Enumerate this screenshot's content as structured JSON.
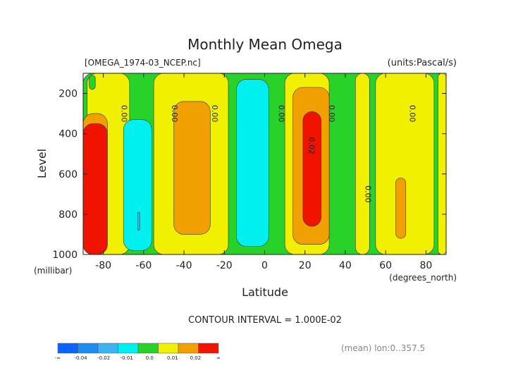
{
  "chart_data": {
    "type": "heatmap",
    "title": "Monthly Mean Omega",
    "file_label": "[OMEGA_1974-03_NCEP.nc]",
    "units_label": "(units:Pascal/s)",
    "xlabel": "Latitude",
    "x_units": "(degrees_north)",
    "ylabel": "Level",
    "y_units": "(millibar)",
    "xlim": [
      -90,
      90
    ],
    "ylim": [
      1000,
      100
    ],
    "x_ticks": [
      "-80",
      "-60",
      "-40",
      "-20",
      "0",
      "20",
      "40",
      "60",
      "80"
    ],
    "y_ticks": [
      "200",
      "400",
      "600",
      "800",
      "1000"
    ],
    "contour_interval": "CONTOUR INTERVAL = 1.000E-02",
    "mean_note": "(mean) lon:0..357.5",
    "contour_labels": [
      "0.00",
      "0.00",
      "0.00",
      "0.00",
      "0.00",
      "0.02",
      "0.00",
      "0.00"
    ],
    "colorbar": {
      "colors": [
        "#0a64ff",
        "#1e8cf0",
        "#3cb4f0",
        "#00f0f0",
        "#28d228",
        "#f0f000",
        "#f0a000",
        "#f01400"
      ],
      "tick_labels": [
        "-∞",
        "-0.04",
        "-0.02",
        "-0.01",
        "0.0",
        "0.01",
        "0.02",
        "∞"
      ]
    },
    "regions": [
      {
        "level": "green",
        "lat": [
          -90,
          90
        ],
        "p": [
          100,
          1000
        ]
      },
      {
        "level": "yellow",
        "lat": [
          -88,
          -67
        ],
        "p": [
          100,
          1000
        ]
      },
      {
        "level": "yellow",
        "lat": [
          -55,
          -18
        ],
        "p": [
          100,
          1000
        ]
      },
      {
        "level": "yellow",
        "lat": [
          10,
          32
        ],
        "p": [
          100,
          1000
        ]
      },
      {
        "level": "yellow",
        "lat": [
          45,
          52
        ],
        "p": [
          100,
          1000
        ]
      },
      {
        "level": "yellow",
        "lat": [
          55,
          84
        ],
        "p": [
          100,
          1000
        ]
      },
      {
        "level": "yellow",
        "lat": [
          86,
          90
        ],
        "p": [
          100,
          1000
        ]
      },
      {
        "level": "green",
        "lat": [
          -87,
          -84
        ],
        "p": [
          110,
          180
        ]
      },
      {
        "level": "orange",
        "lat": [
          -90,
          -78
        ],
        "p": [
          300,
          1000
        ]
      },
      {
        "level": "orange",
        "lat": [
          -45,
          -27
        ],
        "p": [
          240,
          900
        ]
      },
      {
        "level": "orange",
        "lat": [
          14,
          32
        ],
        "p": [
          170,
          950
        ]
      },
      {
        "level": "orange",
        "lat": [
          65,
          70
        ],
        "p": [
          620,
          920
        ]
      },
      {
        "level": "red",
        "lat": [
          -90,
          -78
        ],
        "p": [
          350,
          1000
        ]
      },
      {
        "level": "red",
        "lat": [
          19,
          28
        ],
        "p": [
          290,
          860
        ]
      },
      {
        "level": "cyan",
        "lat": [
          -70,
          -56
        ],
        "p": [
          330,
          980
        ]
      },
      {
        "level": "cyan",
        "lat": [
          -14,
          2
        ],
        "p": [
          130,
          960
        ]
      },
      {
        "level": "blue",
        "lat": [
          -63,
          -62
        ],
        "p": [
          790,
          880
        ]
      }
    ]
  }
}
